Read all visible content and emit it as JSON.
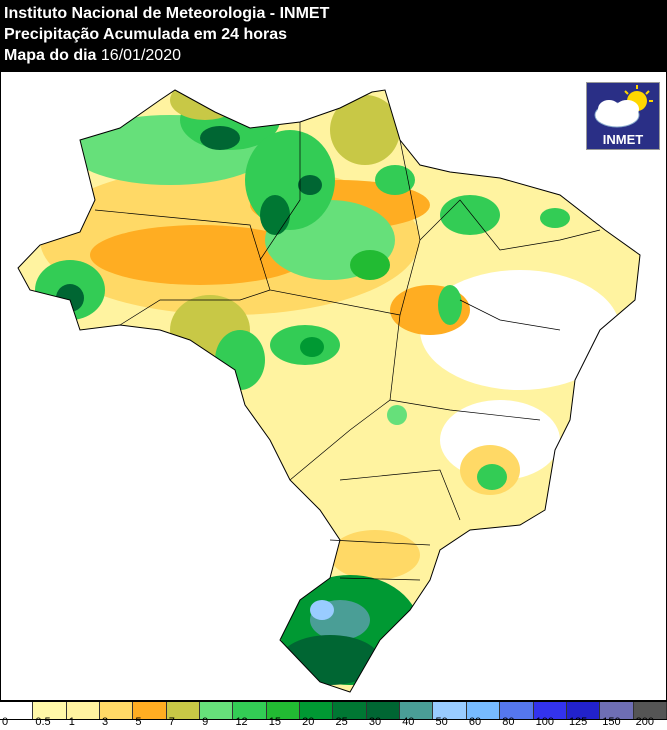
{
  "header": {
    "line1": "Instituto Nacional de Meteorologia - INMET",
    "line2": "Precipitação Acumulada em 24 horas",
    "line3_label": "Mapa do dia",
    "line3_date": "16/01/2020"
  },
  "logo": {
    "text": "INMET",
    "icon": "cloud-sun-icon"
  },
  "legend": {
    "colors": [
      "#ffffff",
      "#fff8a8",
      "#fff3a0",
      "#ffd966",
      "#ffad22",
      "#c8c846",
      "#66e07a",
      "#33cc55",
      "#22bb33",
      "#009933",
      "#007733",
      "#006633",
      "#4a9e96",
      "#99ccff",
      "#77bbff",
      "#5577ee",
      "#3333ee",
      "#2222cc",
      "#6e6eb4",
      "#555555"
    ],
    "labels": [
      "0",
      "0.5",
      "1",
      "3",
      "5",
      "7",
      "9",
      "12",
      "15",
      "20",
      "25",
      "30",
      "40",
      "50",
      "60",
      "80",
      "100",
      "125",
      "150",
      "200"
    ]
  }
}
